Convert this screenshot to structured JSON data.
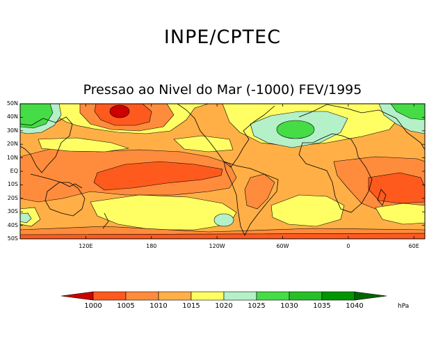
{
  "header": {
    "title": "INPE/CPTEC"
  },
  "map": {
    "title": "Pressao ao Nivel do Mar (-1000) FEV/1995",
    "lat_labels": [
      "50N",
      "40N",
      "30N",
      "20N",
      "10N",
      "EQ",
      "10S",
      "20S",
      "30S",
      "40S",
      "50S"
    ],
    "lon_labels": [
      "120E",
      "180",
      "120W",
      "60W",
      "0",
      "60E"
    ]
  },
  "legend": {
    "levels": [
      "1000",
      "1005",
      "1010",
      "1015",
      "1020",
      "1025",
      "1030",
      "1035",
      "1040"
    ],
    "unit": "hPa",
    "colors": [
      "#cc0000",
      "#ff5a1e",
      "#ff8c3c",
      "#ffaf46",
      "#ffff64",
      "#b4f0c8",
      "#46dc46",
      "#28be28",
      "#009600",
      "#006400"
    ]
  }
}
